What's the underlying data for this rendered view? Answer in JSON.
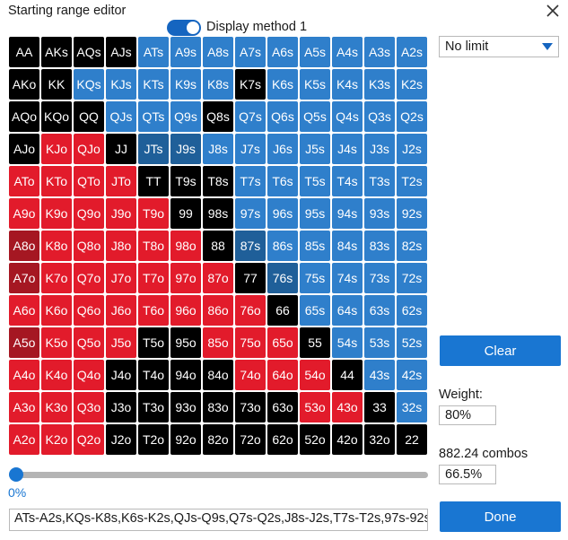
{
  "window": {
    "title": "Starting range editor"
  },
  "toggle": {
    "label": "Display method 1",
    "on": true
  },
  "limit_select": {
    "value": "No limit"
  },
  "grid": {
    "rows": [
      [
        [
          "AA",
          "k"
        ],
        [
          "AKs",
          "k"
        ],
        [
          "AQs",
          "k"
        ],
        [
          "AJs",
          "k"
        ],
        [
          "ATs",
          "b"
        ],
        [
          "A9s",
          "b"
        ],
        [
          "A8s",
          "b"
        ],
        [
          "A7s",
          "b"
        ],
        [
          "A6s",
          "b"
        ],
        [
          "A5s",
          "b"
        ],
        [
          "A4s",
          "b"
        ],
        [
          "A3s",
          "b"
        ],
        [
          "A2s",
          "b"
        ]
      ],
      [
        [
          "AKo",
          "k"
        ],
        [
          "KK",
          "k"
        ],
        [
          "KQs",
          "b"
        ],
        [
          "KJs",
          "b"
        ],
        [
          "KTs",
          "b"
        ],
        [
          "K9s",
          "b"
        ],
        [
          "K8s",
          "b"
        ],
        [
          "K7s",
          "k"
        ],
        [
          "K6s",
          "b"
        ],
        [
          "K5s",
          "b"
        ],
        [
          "K4s",
          "b"
        ],
        [
          "K3s",
          "b"
        ],
        [
          "K2s",
          "b"
        ]
      ],
      [
        [
          "AQo",
          "k"
        ],
        [
          "KQo",
          "k"
        ],
        [
          "QQ",
          "k"
        ],
        [
          "QJs",
          "b"
        ],
        [
          "QTs",
          "b"
        ],
        [
          "Q9s",
          "b"
        ],
        [
          "Q8s",
          "k"
        ],
        [
          "Q7s",
          "b"
        ],
        [
          "Q6s",
          "b"
        ],
        [
          "Q5s",
          "b"
        ],
        [
          "Q4s",
          "b"
        ],
        [
          "Q3s",
          "b"
        ],
        [
          "Q2s",
          "b"
        ]
      ],
      [
        [
          "AJo",
          "k"
        ],
        [
          "KJo",
          "r"
        ],
        [
          "QJo",
          "r"
        ],
        [
          "JJ",
          "k"
        ],
        [
          "JTs",
          "B"
        ],
        [
          "J9s",
          "B"
        ],
        [
          "J8s",
          "b"
        ],
        [
          "J7s",
          "b"
        ],
        [
          "J6s",
          "b"
        ],
        [
          "J5s",
          "b"
        ],
        [
          "J4s",
          "b"
        ],
        [
          "J3s",
          "b"
        ],
        [
          "J2s",
          "b"
        ]
      ],
      [
        [
          "ATo",
          "r"
        ],
        [
          "KTo",
          "r"
        ],
        [
          "QTo",
          "r"
        ],
        [
          "JTo",
          "r"
        ],
        [
          "TT",
          "k"
        ],
        [
          "T9s",
          "k"
        ],
        [
          "T8s",
          "k"
        ],
        [
          "T7s",
          "b"
        ],
        [
          "T6s",
          "b"
        ],
        [
          "T5s",
          "b"
        ],
        [
          "T4s",
          "b"
        ],
        [
          "T3s",
          "b"
        ],
        [
          "T2s",
          "b"
        ]
      ],
      [
        [
          "A9o",
          "r"
        ],
        [
          "K9o",
          "r"
        ],
        [
          "Q9o",
          "r"
        ],
        [
          "J9o",
          "r"
        ],
        [
          "T9o",
          "r"
        ],
        [
          "99",
          "k"
        ],
        [
          "98s",
          "k"
        ],
        [
          "97s",
          "b"
        ],
        [
          "96s",
          "b"
        ],
        [
          "95s",
          "b"
        ],
        [
          "94s",
          "b"
        ],
        [
          "93s",
          "b"
        ],
        [
          "92s",
          "b"
        ]
      ],
      [
        [
          "A8o",
          "R"
        ],
        [
          "K8o",
          "r"
        ],
        [
          "Q8o",
          "r"
        ],
        [
          "J8o",
          "r"
        ],
        [
          "T8o",
          "r"
        ],
        [
          "98o",
          "r"
        ],
        [
          "88",
          "k"
        ],
        [
          "87s",
          "B"
        ],
        [
          "86s",
          "b"
        ],
        [
          "85s",
          "b"
        ],
        [
          "84s",
          "b"
        ],
        [
          "83s",
          "b"
        ],
        [
          "82s",
          "b"
        ]
      ],
      [
        [
          "A7o",
          "R"
        ],
        [
          "K7o",
          "r"
        ],
        [
          "Q7o",
          "r"
        ],
        [
          "J7o",
          "r"
        ],
        [
          "T7o",
          "r"
        ],
        [
          "97o",
          "r"
        ],
        [
          "87o",
          "r"
        ],
        [
          "77",
          "k"
        ],
        [
          "76s",
          "B"
        ],
        [
          "75s",
          "b"
        ],
        [
          "74s",
          "b"
        ],
        [
          "73s",
          "b"
        ],
        [
          "72s",
          "b"
        ]
      ],
      [
        [
          "A6o",
          "r"
        ],
        [
          "K6o",
          "r"
        ],
        [
          "Q6o",
          "r"
        ],
        [
          "J6o",
          "r"
        ],
        [
          "T6o",
          "r"
        ],
        [
          "96o",
          "r"
        ],
        [
          "86o",
          "r"
        ],
        [
          "76o",
          "r"
        ],
        [
          "66",
          "k"
        ],
        [
          "65s",
          "b"
        ],
        [
          "64s",
          "b"
        ],
        [
          "63s",
          "b"
        ],
        [
          "62s",
          "b"
        ]
      ],
      [
        [
          "A5o",
          "R"
        ],
        [
          "K5o",
          "r"
        ],
        [
          "Q5o",
          "r"
        ],
        [
          "J5o",
          "r"
        ],
        [
          "T5o",
          "k"
        ],
        [
          "95o",
          "k"
        ],
        [
          "85o",
          "r"
        ],
        [
          "75o",
          "r"
        ],
        [
          "65o",
          "r"
        ],
        [
          "55",
          "k"
        ],
        [
          "54s",
          "b"
        ],
        [
          "53s",
          "b"
        ],
        [
          "52s",
          "b"
        ]
      ],
      [
        [
          "A4o",
          "r"
        ],
        [
          "K4o",
          "r"
        ],
        [
          "Q4o",
          "r"
        ],
        [
          "J4o",
          "k"
        ],
        [
          "T4o",
          "k"
        ],
        [
          "94o",
          "k"
        ],
        [
          "84o",
          "k"
        ],
        [
          "74o",
          "r"
        ],
        [
          "64o",
          "r"
        ],
        [
          "54o",
          "r"
        ],
        [
          "44",
          "k"
        ],
        [
          "43s",
          "b"
        ],
        [
          "42s",
          "b"
        ]
      ],
      [
        [
          "A3o",
          "r"
        ],
        [
          "K3o",
          "r"
        ],
        [
          "Q3o",
          "r"
        ],
        [
          "J3o",
          "k"
        ],
        [
          "T3o",
          "k"
        ],
        [
          "93o",
          "k"
        ],
        [
          "83o",
          "k"
        ],
        [
          "73o",
          "k"
        ],
        [
          "63o",
          "k"
        ],
        [
          "53o",
          "r"
        ],
        [
          "43o",
          "r"
        ],
        [
          "33",
          "k"
        ],
        [
          "32s",
          "b"
        ]
      ],
      [
        [
          "A2o",
          "r"
        ],
        [
          "K2o",
          "r"
        ],
        [
          "Q2o",
          "r"
        ],
        [
          "J2o",
          "k"
        ],
        [
          "T2o",
          "k"
        ],
        [
          "92o",
          "k"
        ],
        [
          "82o",
          "k"
        ],
        [
          "72o",
          "k"
        ],
        [
          "62o",
          "k"
        ],
        [
          "52o",
          "k"
        ],
        [
          "42o",
          "k"
        ],
        [
          "32o",
          "k"
        ],
        [
          "22",
          "k"
        ]
      ]
    ]
  },
  "buttons": {
    "clear": "Clear",
    "done": "Done"
  },
  "weight": {
    "label": "Weight:",
    "value": "80%"
  },
  "combos": {
    "label": "882.24 combos",
    "value": "66.5%"
  },
  "slider": {
    "value_label": "0%",
    "value": 0
  },
  "range_text": "ATs-A2s,KQs-K8s,K6s-K2s,QJs-Q9s,Q7s-Q2s,J8s-J2s,T7s-T2s,97s-92s"
}
